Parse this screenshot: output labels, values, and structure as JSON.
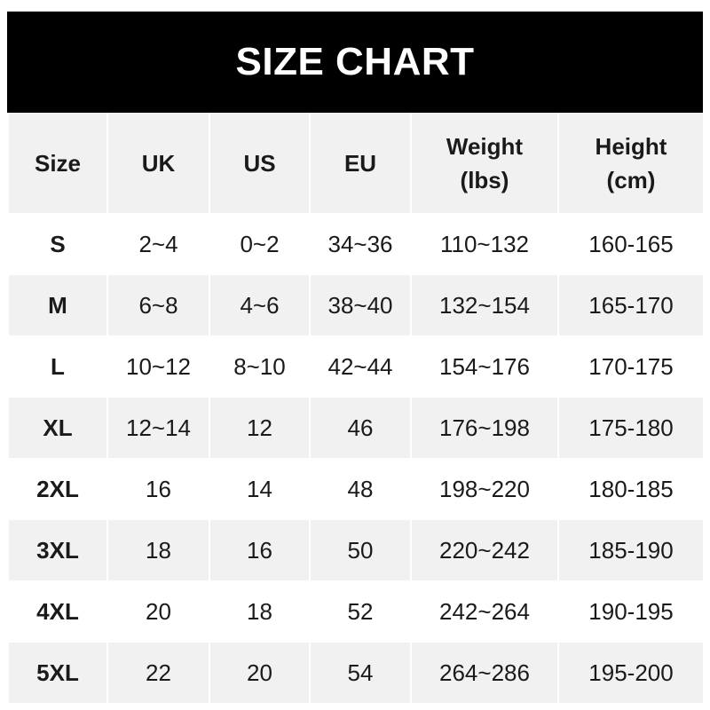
{
  "title": "SIZE CHART",
  "headers": [
    "Size",
    "UK",
    "US",
    "EU",
    "Weight\n(lbs)",
    "Height\n(cm)"
  ],
  "header_lines": [
    [
      "Size"
    ],
    [
      "UK"
    ],
    [
      "US"
    ],
    [
      "EU"
    ],
    [
      "Weight",
      "(lbs)"
    ],
    [
      "Height",
      "(cm)"
    ]
  ],
  "rows": [
    [
      "S",
      "2~4",
      "0~2",
      "34~36",
      "110~132",
      "160-165"
    ],
    [
      "M",
      "6~8",
      "4~6",
      "38~40",
      "132~154",
      "165-170"
    ],
    [
      "L",
      "10~12",
      "8~10",
      "42~44",
      "154~176",
      "170-175"
    ],
    [
      "XL",
      "12~14",
      "12",
      "46",
      "176~198",
      "175-180"
    ],
    [
      "2XL",
      "16",
      "14",
      "48",
      "198~220",
      "180-185"
    ],
    [
      "3XL",
      "18",
      "16",
      "50",
      "220~242",
      "185-190"
    ],
    [
      "4XL",
      "20",
      "18",
      "52",
      "242~264",
      "190-195"
    ],
    [
      "5XL",
      "22",
      "20",
      "54",
      "264~286",
      "195-200"
    ]
  ],
  "colors": {
    "title_bg": "#000000",
    "title_text": "#ffffff",
    "stripe": "#f1f1f1",
    "text": "#1a1a1a"
  }
}
